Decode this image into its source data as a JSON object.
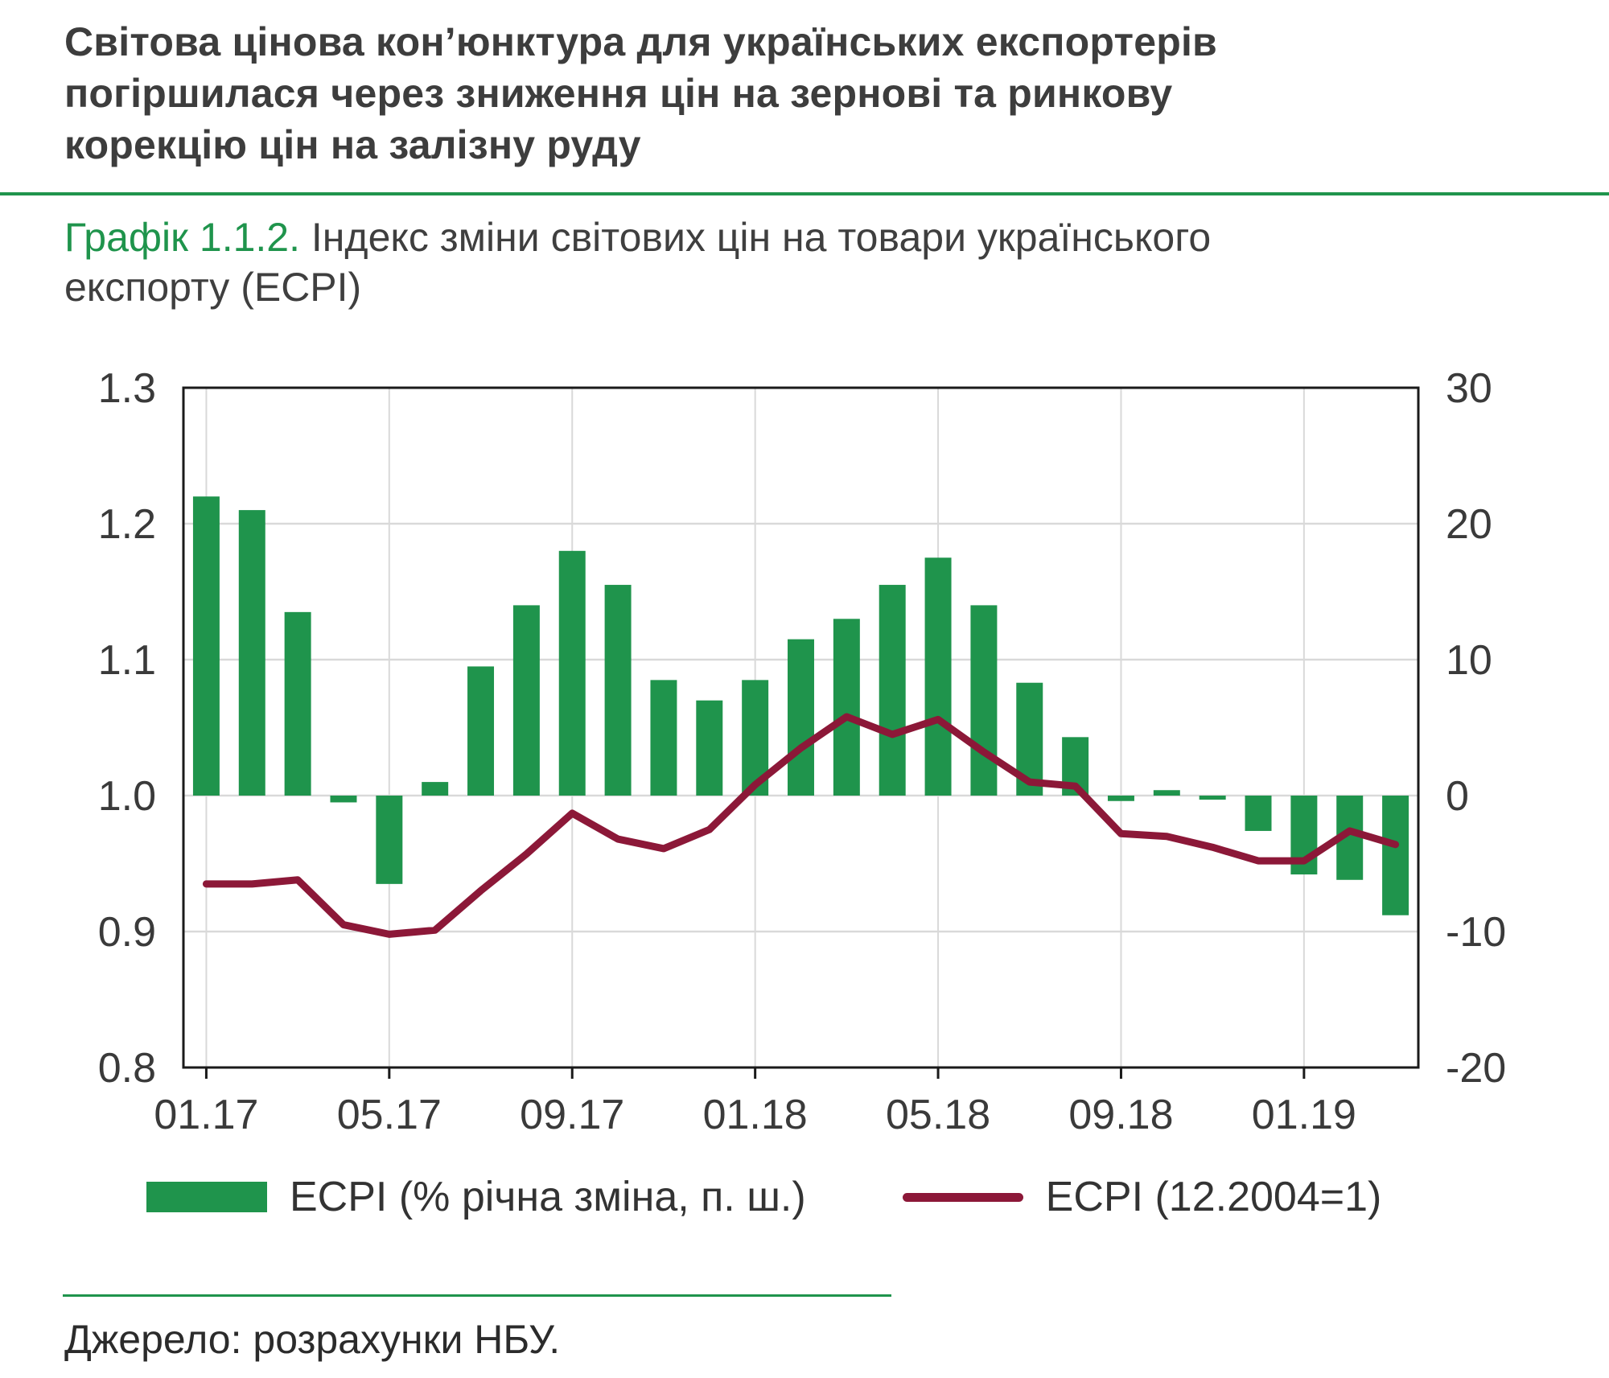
{
  "header": {
    "title": "Світова цінова кон’юнктура для українських експортерів погіршилася через зниження цін на зернові та ринкову корекцію цін на залізну руду"
  },
  "caption": {
    "number": "Графік 1.1.2.",
    "text": "Індекс зміни світових цін на товари українського експорту (ECPI)"
  },
  "legend": [
    {
      "type": "bar",
      "label": "ECPI (% річна зміна, п. ш.)",
      "color": "#1f944c"
    },
    {
      "type": "line",
      "label": "ECPI (12.2004=1)",
      "color": "#8c1838"
    }
  ],
  "source": "Джерело: розрахунки НБУ.",
  "colors": {
    "green": "#1f944c",
    "burgundy": "#8c1838",
    "grid": "#d9d9d9",
    "plot_border": "#1a1a1a",
    "axis_text": "#3a3a3a",
    "title_text": "#3d3d3d"
  },
  "chart_data": {
    "type": "bar+line",
    "title": "Індекс зміни світових цін на товари українського експорту (ECPI)",
    "categories": [
      "01.17",
      "02.17",
      "03.17",
      "04.17",
      "05.17",
      "06.17",
      "07.17",
      "08.17",
      "09.17",
      "10.17",
      "11.17",
      "12.17",
      "01.18",
      "02.18",
      "03.18",
      "04.18",
      "05.18",
      "06.18",
      "07.18",
      "08.18",
      "09.18",
      "10.18",
      "11.18",
      "12.18",
      "01.19",
      "02.19",
      "03.19"
    ],
    "x_tick_labels": [
      "01.17",
      "05.17",
      "09.17",
      "01.18",
      "05.18",
      "09.18",
      "01.19"
    ],
    "x_tick_indices": [
      0,
      4,
      8,
      12,
      16,
      20,
      24
    ],
    "left_axis": {
      "ticks": [
        1.3,
        1.2,
        1.1,
        1.0,
        0.9,
        0.8
      ],
      "range": [
        0.8,
        1.3
      ]
    },
    "right_axis": {
      "ticks": [
        30,
        20,
        10,
        0,
        -10,
        -20
      ],
      "range": [
        -20,
        30
      ]
    },
    "grid": true,
    "legend_position": "bottom",
    "series": [
      {
        "name": "ECPI (% річна зміна, п. ш.)",
        "type": "bar",
        "axis": "right",
        "color": "#1f944c",
        "values": [
          22,
          21,
          13.5,
          -0.5,
          -6.5,
          1,
          9.5,
          14,
          18,
          15.5,
          8.5,
          7,
          8.5,
          11.5,
          13,
          15.5,
          17.5,
          14,
          8.3,
          4.3,
          -0.4,
          0.4,
          -0.3,
          -2.6,
          -5.8,
          -6.2,
          -8.8
        ]
      },
      {
        "name": "ECPI (12.2004=1)",
        "type": "line",
        "axis": "left",
        "color": "#8c1838",
        "values": [
          0.935,
          0.935,
          0.938,
          0.905,
          0.898,
          0.901,
          0.93,
          0.957,
          0.987,
          0.968,
          0.961,
          0.975,
          1.008,
          1.035,
          1.058,
          1.045,
          1.056,
          1.032,
          1.01,
          1.007,
          0.972,
          0.97,
          0.962,
          0.952,
          0.952,
          0.974,
          0.964
        ]
      }
    ]
  }
}
